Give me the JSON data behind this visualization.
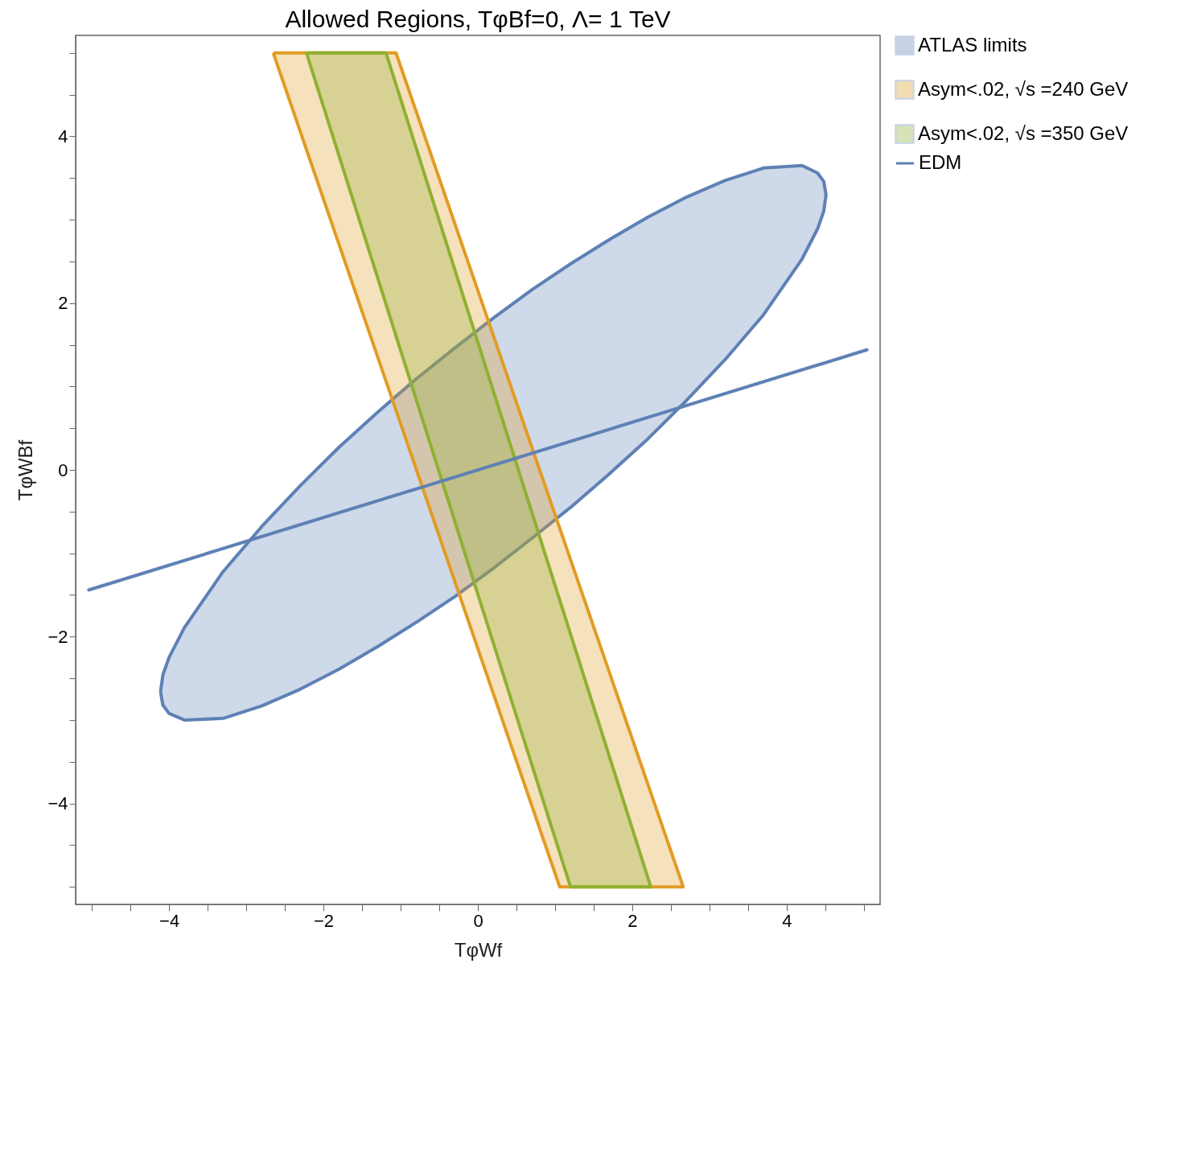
{
  "chart_data": {
    "type": "area",
    "title": "Allowed Regions, TφBf=0, Λ= 1 TeV",
    "xlabel": "TφWf",
    "ylabel": "TφWBf",
    "xlim": [
      -5.21,
      5.21
    ],
    "ylim": [
      -5.21,
      5.21
    ],
    "xticks": [
      {
        "value": -5,
        "label": null
      },
      {
        "value": -4.5,
        "label": null
      },
      -4,
      {
        "value": -3.5,
        "label": null
      },
      {
        "value": -3,
        "label": null
      },
      {
        "value": -2.5,
        "label": null
      },
      -2,
      {
        "value": -1.5,
        "label": null
      },
      {
        "value": -1,
        "label": null
      },
      {
        "value": -0.5,
        "label": null
      },
      0,
      {
        "value": 0.5,
        "label": null
      },
      {
        "value": 1,
        "label": null
      },
      {
        "value": 1.5,
        "label": null
      },
      2,
      {
        "value": 2.5,
        "label": null
      },
      {
        "value": 3,
        "label": null
      },
      {
        "value": 3.5,
        "label": null
      },
      4,
      {
        "value": 4.5,
        "label": null
      },
      {
        "value": 5,
        "label": null
      }
    ],
    "yticks": [
      {
        "value": -5,
        "label": null
      },
      {
        "value": -4.5,
        "label": null
      },
      -4,
      {
        "value": -3.5,
        "label": null
      },
      {
        "value": -3,
        "label": null
      },
      {
        "value": -2.5,
        "label": null
      },
      -2,
      {
        "value": -1.5,
        "label": null
      },
      {
        "value": -1,
        "label": null
      },
      {
        "value": -0.5,
        "label": null
      },
      0,
      {
        "value": 0.5,
        "label": null
      },
      {
        "value": 1,
        "label": null
      },
      {
        "value": 1.5,
        "label": null
      },
      2,
      {
        "value": 2.5,
        "label": null
      },
      {
        "value": 3,
        "label": null
      },
      {
        "value": 3.5,
        "label": null
      },
      4,
      {
        "value": 4.5,
        "label": null
      },
      {
        "value": 5,
        "label": null
      }
    ],
    "legend": "right",
    "series": [
      {
        "name": "ATLAS limits",
        "color": "#5e81b5",
        "x": [
          -4.11,
          -4.08,
          -4.0,
          -3.8,
          -3.3,
          -2.8,
          -2.3,
          -1.8,
          -1.3,
          -0.8,
          -0.3,
          0.2,
          0.7,
          1.2,
          1.7,
          2.2,
          2.7,
          3.2,
          3.7,
          4.2,
          4.4,
          4.48,
          4.51,
          4.48,
          4.4,
          4.2,
          3.7,
          3.2,
          2.7,
          2.2,
          1.7,
          1.2,
          0.7,
          0.2,
          -0.3,
          -0.8,
          -1.3,
          -1.8,
          -2.3,
          -2.8,
          -3.3,
          -3.8,
          -4.0,
          -4.08
        ],
        "values": [
          -2.66,
          -2.82,
          -2.92,
          -3.0,
          -2.98,
          -2.83,
          -2.63,
          -2.39,
          -2.12,
          -1.83,
          -1.52,
          -1.18,
          -0.82,
          -0.45,
          -0.05,
          0.37,
          0.83,
          1.32,
          1.86,
          2.53,
          2.89,
          3.1,
          3.3,
          3.46,
          3.56,
          3.65,
          3.62,
          3.47,
          3.27,
          3.03,
          2.76,
          2.47,
          2.16,
          1.82,
          1.46,
          1.09,
          0.69,
          0.27,
          -0.19,
          -0.68,
          -1.22,
          -1.89,
          -2.25,
          -2.46
        ]
      },
      {
        "name": "Asym<.02, √s =240 GeV",
        "color": "#e19c24",
        "x": [
          -2.65,
          -1.06,
          2.66,
          1.06
        ],
        "values": [
          5,
          5,
          -5,
          -5
        ]
      },
      {
        "name": "Asym<.02, √s =350 GeV",
        "color": "#8fb032",
        "x": [
          -2.22,
          -1.19,
          2.24,
          1.2
        ],
        "values": [
          5,
          5,
          -5,
          -5
        ]
      },
      {
        "name": "EDM",
        "type": "line",
        "color": "#5e81b5",
        "x": [
          -5.04,
          5.04
        ],
        "values": [
          -1.44,
          1.44
        ]
      }
    ]
  }
}
